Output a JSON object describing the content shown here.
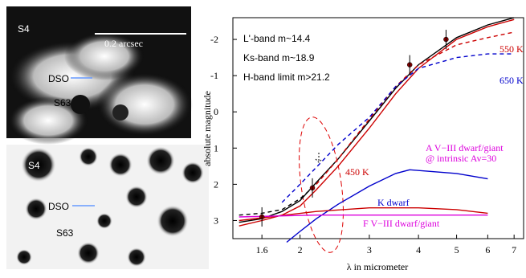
{
  "panels": {
    "top": {
      "star_a": "S4",
      "scale": "0.2 arcsec",
      "source": "DSO",
      "star_b": "S63"
    },
    "bottom": {
      "star_a": "S4",
      "source": "DSO",
      "star_b": "S63"
    }
  },
  "chart_data": {
    "type": "line",
    "xlabel": "λ in micrometer",
    "ylabel": "absolute magnitude",
    "xlog": true,
    "yinverted": true,
    "xlim": [
      1.35,
      7.4
    ],
    "ylim": [
      3.5,
      -2.6
    ],
    "xticks": [
      1.6,
      2,
      3,
      4,
      5,
      6,
      7
    ],
    "yticks": [
      -2,
      -1,
      0,
      1,
      2,
      3
    ],
    "series": [
      {
        "color": "#000000",
        "dash": false,
        "x": [
          1.4,
          1.6,
          1.8,
          2,
          2.2,
          2.5,
          3,
          3.5,
          4,
          5,
          6,
          7
        ],
        "values": [
          3.05,
          2.95,
          2.75,
          2.45,
          1.95,
          1.3,
          0.25,
          -0.65,
          -1.3,
          -2.05,
          -2.4,
          -2.6
        ]
      },
      {
        "color": "#cc0000",
        "dash": false,
        "x": [
          1.4,
          1.6,
          1.8,
          2,
          2.2,
          2.5,
          3,
          3.5,
          4,
          5,
          6,
          7
        ],
        "values": [
          3.15,
          3.0,
          2.85,
          2.6,
          2.15,
          1.5,
          0.45,
          -0.5,
          -1.2,
          -2.0,
          -2.35,
          -2.55
        ]
      },
      {
        "color": "#000000",
        "dash": true,
        "x": [
          1.4,
          1.6,
          1.8,
          2,
          2.2
        ],
        "values": [
          2.85,
          2.8,
          2.7,
          2.4,
          2.0
        ]
      },
      {
        "color": "#cc0000",
        "dash": true,
        "x": [
          2.2,
          2.5,
          3,
          3.5,
          4,
          5,
          6,
          7
        ],
        "values": [
          2.0,
          1.3,
          0.2,
          -0.7,
          -1.3,
          -1.85,
          -2.05,
          -2.2
        ]
      },
      {
        "color": "#0000cc",
        "dash": true,
        "x": [
          1.8,
          2,
          2.5,
          3,
          3.5,
          4,
          5,
          6,
          7
        ],
        "values": [
          2.5,
          2.0,
          0.9,
          0.15,
          -0.7,
          -1.2,
          -1.5,
          -1.6,
          -1.6
        ]
      },
      {
        "color": "#0000cc",
        "dash": false,
        "x": [
          1.85,
          2,
          2.2,
          2.5,
          3,
          3.5,
          3.8,
          5,
          6
        ],
        "values": [
          3.6,
          3.3,
          2.95,
          2.55,
          2.05,
          1.7,
          1.6,
          1.7,
          1.85
        ]
      },
      {
        "color": "#cc0000",
        "dash": false,
        "x": [
          1.4,
          2.2,
          3,
          4,
          5,
          6
        ],
        "values": [
          3.0,
          2.75,
          2.65,
          2.65,
          2.7,
          2.8
        ]
      },
      {
        "color": "#dd00dd",
        "dash": false,
        "x": [
          1.4,
          2.2,
          4,
          6
        ],
        "values": [
          2.9,
          2.85,
          2.85,
          2.85
        ]
      }
    ],
    "points": {
      "x": [
        1.6,
        2.15,
        3.8,
        4.7
      ],
      "values": [
        2.9,
        2.1,
        -1.3,
        -2.0
      ]
    },
    "annotations": [
      "L'-band  m~14.4",
      "Ks-band  m~18.9",
      "H-band limit  m>21.2",
      "550 K",
      "650 K",
      "450 K",
      "K dwarf",
      "A V−III dwarf/giant",
      "@ intrinsic Av=30",
      "F V−III dwarf/giant"
    ]
  }
}
